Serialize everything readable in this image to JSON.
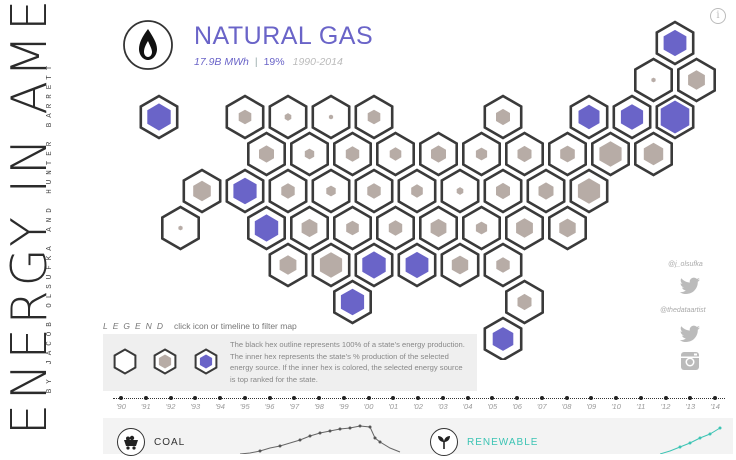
{
  "title_vertical": "ENERGY IN AMERICA",
  "credit_vertical": "BY JACOB OLSUFKA AND HUNTER BARRETT",
  "info_icon": "info-circle-icon",
  "header": {
    "icon": "flame-icon",
    "title": "NATURAL GAS",
    "total": "17.9B MWh",
    "separator": "|",
    "share": "19%",
    "years": "1990-2014"
  },
  "colors": {
    "accent": "#6a64c8",
    "hex_fill_colored": "#6a64c8",
    "hex_fill_gray": "#b7aca6",
    "hex_outline": "#3a3a3a",
    "renewable": "#3cc4b4"
  },
  "legend": {
    "heading": "LEGEND",
    "instruction": "click icon or timeline to filter map",
    "text": "The black hex outline represents 100% of a state's energy production. The inner hex represents the state's % production of the selected energy source.  If the inner hex is colored, the selected energy source is top ranked for the state."
  },
  "social": {
    "handle1": "@j_olsufka",
    "handle2": "@thedataartist",
    "icons": [
      "twitter-icon",
      "twitter-icon",
      "instagram-icon"
    ]
  },
  "timeline": {
    "years": [
      "'90",
      "'91",
      "'92",
      "'93",
      "'94",
      "'95",
      "'96",
      "'97",
      "'98",
      "'99",
      "'00",
      "'01",
      "'02",
      "'03",
      "'04",
      "'05",
      "'06",
      "'07",
      "'08",
      "'09",
      "'10",
      "'11",
      "'12",
      "'13",
      "'14"
    ],
    "selected_range": [
      "'90",
      "'14"
    ]
  },
  "sources": [
    {
      "label": "COAL",
      "icon": "coal-cart-icon",
      "color": "#333333"
    },
    {
      "label": "RENEWABLE",
      "icon": "sprout-icon",
      "color": "#3cc4b4"
    }
  ],
  "states": [
    {
      "row": 0,
      "col": 12,
      "share": 0.58,
      "top": true
    },
    {
      "row": 1,
      "col": 11,
      "share": 0.02,
      "top": false
    },
    {
      "row": 1,
      "col": 12,
      "share": 0.32,
      "top": false
    },
    {
      "row": 2,
      "col": 0,
      "share": 0.62,
      "top": true
    },
    {
      "row": 2,
      "col": 2,
      "share": 0.18,
      "top": false
    },
    {
      "row": 2,
      "col": 3,
      "share": 0.05,
      "top": false
    },
    {
      "row": 2,
      "col": 4,
      "share": 0.02,
      "top": false
    },
    {
      "row": 2,
      "col": 5,
      "share": 0.18,
      "top": false
    },
    {
      "row": 2,
      "col": 8,
      "share": 0.22,
      "top": false
    },
    {
      "row": 2,
      "col": 10,
      "share": 0.5,
      "top": true
    },
    {
      "row": 2,
      "col": 11,
      "share": 0.55,
      "top": true
    },
    {
      "row": 2,
      "col": 12,
      "share": 0.92,
      "top": true
    },
    {
      "row": 3,
      "col": 2,
      "share": 0.25,
      "top": false
    },
    {
      "row": 3,
      "col": 3,
      "share": 0.1,
      "top": false
    },
    {
      "row": 3,
      "col": 4,
      "share": 0.2,
      "top": false
    },
    {
      "row": 3,
      "col": 5,
      "share": 0.15,
      "top": false
    },
    {
      "row": 3,
      "col": 6,
      "share": 0.25,
      "top": false
    },
    {
      "row": 3,
      "col": 7,
      "share": 0.14,
      "top": false
    },
    {
      "row": 3,
      "col": 8,
      "share": 0.22,
      "top": false
    },
    {
      "row": 3,
      "col": 9,
      "share": 0.24,
      "top": false
    },
    {
      "row": 3,
      "col": 10,
      "share": 0.55,
      "top": false
    },
    {
      "row": 3,
      "col": 11,
      "share": 0.42,
      "top": false
    },
    {
      "row": 4,
      "col": 1,
      "share": 0.35,
      "top": false
    },
    {
      "row": 4,
      "col": 2,
      "share": 0.6,
      "top": true
    },
    {
      "row": 4,
      "col": 3,
      "share": 0.2,
      "top": false
    },
    {
      "row": 4,
      "col": 4,
      "share": 0.1,
      "top": false
    },
    {
      "row": 4,
      "col": 5,
      "share": 0.2,
      "top": false
    },
    {
      "row": 4,
      "col": 6,
      "share": 0.15,
      "top": false
    },
    {
      "row": 4,
      "col": 7,
      "share": 0.05,
      "top": false
    },
    {
      "row": 4,
      "col": 8,
      "share": 0.22,
      "top": false
    },
    {
      "row": 4,
      "col": 9,
      "share": 0.25,
      "top": false
    },
    {
      "row": 4,
      "col": 10,
      "share": 0.55,
      "top": false
    },
    {
      "row": 5,
      "col": 0,
      "share": 0.02,
      "top": false
    },
    {
      "row": 5,
      "col": 2,
      "share": 0.62,
      "top": true
    },
    {
      "row": 5,
      "col": 3,
      "share": 0.28,
      "top": false
    },
    {
      "row": 5,
      "col": 4,
      "share": 0.18,
      "top": false
    },
    {
      "row": 5,
      "col": 5,
      "share": 0.2,
      "top": false
    },
    {
      "row": 5,
      "col": 6,
      "share": 0.28,
      "top": false
    },
    {
      "row": 5,
      "col": 7,
      "share": 0.14,
      "top": false
    },
    {
      "row": 5,
      "col": 8,
      "share": 0.32,
      "top": false
    },
    {
      "row": 5,
      "col": 9,
      "share": 0.3,
      "top": false
    },
    {
      "row": 6,
      "col": 3,
      "share": 0.32,
      "top": false
    },
    {
      "row": 6,
      "col": 4,
      "share": 0.55,
      "top": false
    },
    {
      "row": 6,
      "col": 5,
      "share": 0.62,
      "top": true
    },
    {
      "row": 6,
      "col": 6,
      "share": 0.58,
      "top": true
    },
    {
      "row": 6,
      "col": 7,
      "share": 0.3,
      "top": false
    },
    {
      "row": 6,
      "col": 8,
      "share": 0.2,
      "top": false
    },
    {
      "row": 7,
      "col": 4,
      "share": 0.6,
      "top": true
    },
    {
      "row": 7,
      "col": 8,
      "share": 0.22,
      "top": false
    },
    {
      "row": 8,
      "col": 8,
      "share": 0.48,
      "top": true
    }
  ]
}
